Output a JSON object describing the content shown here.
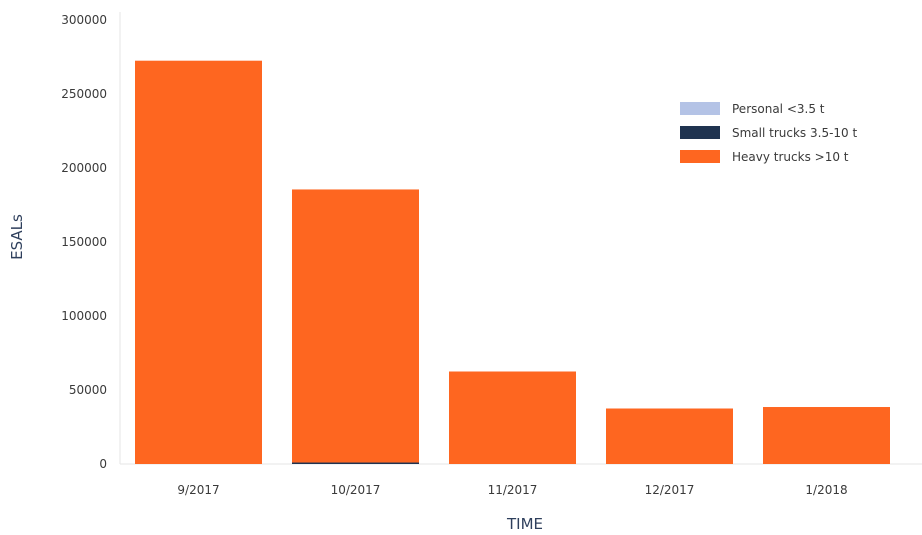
{
  "chart_data": {
    "type": "bar",
    "stacked": true,
    "title": "",
    "xlabel": "TIME",
    "ylabel": "ESALs",
    "ylim": [
      0,
      300000
    ],
    "yticks": [
      0,
      50000,
      100000,
      150000,
      200000,
      250000,
      300000
    ],
    "categories": [
      "9/2017",
      "10/2017",
      "11/2017",
      "12/2017",
      "1/2018"
    ],
    "series": [
      {
        "name": "Personal <3.5 t",
        "color": "#b4c3e6",
        "values": [
          0,
          0,
          0,
          0,
          0
        ]
      },
      {
        "name": "Small trucks 3.5-10 t",
        "color": "#1f3350",
        "values": [
          0,
          1000,
          0,
          0,
          0
        ]
      },
      {
        "name": "Heavy trucks >10 t",
        "color": "#fe6620",
        "values": [
          272500,
          184500,
          62500,
          37500,
          38500
        ]
      }
    ],
    "grid": false,
    "legend_position": "top-right"
  }
}
